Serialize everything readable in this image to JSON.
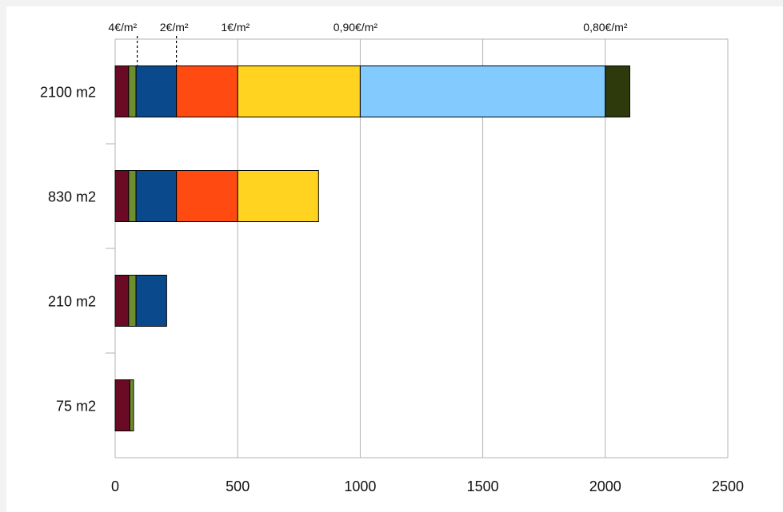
{
  "chart_data": {
    "type": "bar",
    "orientation": "horizontal",
    "stacked": true,
    "title": "",
    "xlabel": "",
    "ylabel": "",
    "xlim": [
      0,
      2500
    ],
    "x_ticks": [
      "0",
      "500",
      "1000",
      "1500",
      "2000",
      "2500"
    ],
    "x_tick_values": [
      0,
      500,
      1000,
      1500,
      2000,
      2500
    ],
    "grid": "vertical",
    "legend": "none",
    "categories": [
      "2100 m2",
      "830 m2",
      "210 m2",
      "75 m2"
    ],
    "series": [
      {
        "color": "#6b0a24",
        "values": [
          55,
          55,
          55,
          60
        ]
      },
      {
        "color": "#6f8f2e",
        "values": [
          30,
          30,
          30,
          15
        ]
      },
      {
        "color": "#0a4a8c",
        "values": [
          165,
          165,
          125,
          0
        ]
      },
      {
        "color": "#ff4a12",
        "values": [
          250,
          250,
          0,
          0
        ]
      },
      {
        "color": "#ffd320",
        "values": [
          500,
          330,
          0,
          0
        ]
      },
      {
        "color": "#83caff",
        "values": [
          1000,
          0,
          0,
          0
        ]
      },
      {
        "color": "#2f3a0c",
        "values": [
          100,
          0,
          0,
          0
        ]
      }
    ],
    "price_annotations": [
      {
        "label": "4€/m²",
        "x": 50,
        "dashed_line_at": 90
      },
      {
        "label": "2€/m²",
        "x": 260,
        "dashed_line_at": 250
      },
      {
        "label": "1€/m²",
        "x": 510
      },
      {
        "label": "0,90€/m²",
        "x": 1000
      },
      {
        "label": "0,80€/m²",
        "x": 2020
      }
    ]
  }
}
